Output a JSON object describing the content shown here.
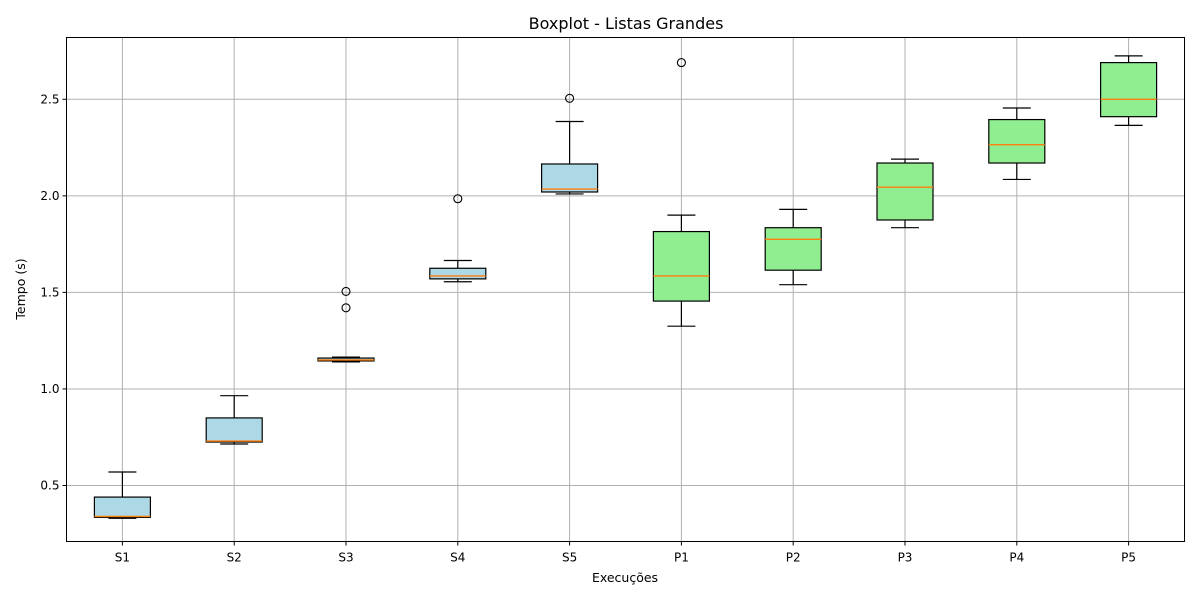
{
  "chart_data": {
    "type": "boxplot",
    "title": "Boxplot - Listas Grandes",
    "xlabel": "Execuções",
    "ylabel": "Tempo (s)",
    "ylim": [
      0.21,
      2.82
    ],
    "yticks": [
      "0.5",
      "1.0",
      "1.5",
      "2.0",
      "2.5"
    ],
    "grid": true,
    "categories": [
      "S1",
      "S2",
      "S3",
      "S4",
      "S5",
      "P1",
      "P2",
      "P3",
      "P4",
      "P5"
    ],
    "boxes": [
      {
        "label": "S1",
        "whislo": 0.33,
        "q1": 0.335,
        "med": 0.34,
        "q3": 0.44,
        "whishi": 0.57,
        "fliers": [],
        "color": "#add8e6"
      },
      {
        "label": "S2",
        "whislo": 0.715,
        "q1": 0.725,
        "med": 0.73,
        "q3": 0.85,
        "whishi": 0.965,
        "fliers": [],
        "color": "#add8e6"
      },
      {
        "label": "S3",
        "whislo": 1.14,
        "q1": 1.145,
        "med": 1.15,
        "q3": 1.16,
        "whishi": 1.165,
        "fliers": [
          1.42,
          1.505
        ],
        "color": "#add8e6"
      },
      {
        "label": "S4",
        "whislo": 1.555,
        "q1": 1.57,
        "med": 1.585,
        "q3": 1.625,
        "whishi": 1.665,
        "fliers": [
          1.985
        ],
        "color": "#add8e6"
      },
      {
        "label": "S5",
        "whislo": 2.01,
        "q1": 2.02,
        "med": 2.035,
        "q3": 2.165,
        "whishi": 2.385,
        "fliers": [
          2.505
        ],
        "color": "#add8e6"
      },
      {
        "label": "P1",
        "whislo": 1.325,
        "q1": 1.455,
        "med": 1.585,
        "q3": 1.815,
        "whishi": 1.9,
        "fliers": [
          2.69
        ],
        "color": "#90ee90"
      },
      {
        "label": "P2",
        "whislo": 1.54,
        "q1": 1.615,
        "med": 1.775,
        "q3": 1.835,
        "whishi": 1.93,
        "fliers": [],
        "color": "#90ee90"
      },
      {
        "label": "P3",
        "whislo": 1.835,
        "q1": 1.875,
        "med": 2.045,
        "q3": 2.17,
        "whishi": 2.19,
        "fliers": [],
        "color": "#90ee90"
      },
      {
        "label": "P4",
        "whislo": 2.085,
        "q1": 2.17,
        "med": 2.265,
        "q3": 2.395,
        "whishi": 2.455,
        "fliers": [],
        "color": "#90ee90"
      },
      {
        "label": "P5",
        "whislo": 2.365,
        "q1": 2.41,
        "med": 2.5,
        "q3": 2.69,
        "whishi": 2.725,
        "fliers": [],
        "color": "#90ee90"
      }
    ],
    "median_color": "#ff7f0e"
  }
}
